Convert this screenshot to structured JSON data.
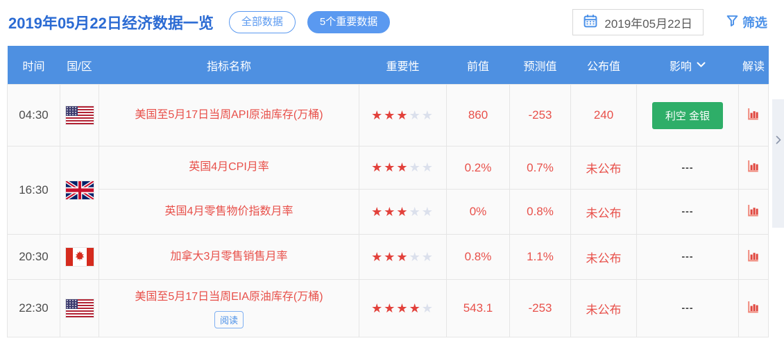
{
  "header": {
    "title": "2019年05月22日经济数据一览",
    "tabs": [
      {
        "label": "全部数据",
        "active": false
      },
      {
        "label": "5个重要数据",
        "active": true
      }
    ],
    "date_value": "2019年05月22日",
    "filter_label": "筛选"
  },
  "icons": {
    "date_picker": "calendar-icon",
    "filter": "funnel-icon",
    "impact_sort": "chevron-down-icon",
    "interpret": "bar-chart-icon",
    "side_panel": "chevron-right-icon",
    "importance": "star-icon"
  },
  "table": {
    "columns": {
      "time": "时间",
      "region": "国/区",
      "indicator": "指标名称",
      "importance": "重要性",
      "previous": "前值",
      "forecast": "预测值",
      "published": "公布值",
      "impact": "影响",
      "interpret": "解读"
    },
    "rows": [
      {
        "time": "04:30",
        "country": "美国",
        "flag": "us-flag-icon",
        "name": "美国至5月17日当周API原油库存(万桶)",
        "stars": 3,
        "previous": "860",
        "forecast": "-253",
        "published": "240",
        "impact": "利空 金银",
        "impact_style": "green-badge"
      },
      {
        "time": "16:30",
        "country": "英国",
        "flag": "uk-flag-icon",
        "name": "英国4月CPI月率",
        "stars": 3,
        "previous": "0.2%",
        "forecast": "0.7%",
        "published": "未公布",
        "impact": "---"
      },
      {
        "name": "英国4月零售物价指数月率",
        "stars": 3,
        "previous": "0%",
        "forecast": "0.8%",
        "published": "未公布",
        "impact": "---"
      },
      {
        "time": "20:30",
        "country": "加拿大",
        "flag": "canada-flag-icon",
        "name": "加拿大3月零售销售月率",
        "stars": 3,
        "previous": "0.8%",
        "forecast": "1.1%",
        "published": "未公布",
        "impact": "---"
      },
      {
        "time": "22:30",
        "country": "美国",
        "flag": "us-flag-icon",
        "name": "美国至5月17日当周EIA原油库存(万桶)",
        "read_label": "阅读",
        "stars": 4,
        "previous": "543.1",
        "forecast": "-253",
        "published": "未公布",
        "impact": "---"
      }
    ]
  },
  "colors": {
    "title_blue": "#2b6bd3",
    "accent_blue": "#5a99f0",
    "link_blue": "#4a90e8",
    "header_bg": "#4e90e1",
    "row_bg": "#fafafa",
    "border": "#e5e5e5",
    "data_red": "#e8504a",
    "star_red": "#e2413b",
    "star_gray": "#dbe0ec",
    "impact_green": "#2eae68",
    "text_dark": "#4d4d4d",
    "dash_dark": "#3c3c3c"
  }
}
